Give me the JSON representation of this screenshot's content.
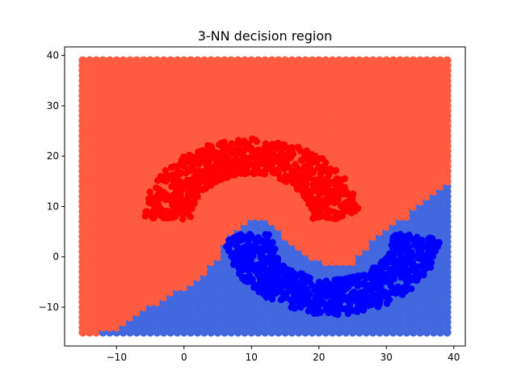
{
  "chart_data": {
    "type": "scatter",
    "title": "3-NN decision region",
    "xlabel": "",
    "ylabel": "",
    "xlim": [
      -17.7,
      41.7
    ],
    "ylim": [
      -17.7,
      41.7
    ],
    "xticks": [
      -10,
      0,
      10,
      20,
      30,
      40
    ],
    "yticks": [
      -10,
      0,
      10,
      20,
      30,
      40
    ],
    "xtick_labels": [
      "−10",
      "0",
      "10",
      "20",
      "30",
      "40"
    ],
    "ytick_labels": [
      "−10",
      "0",
      "10",
      "20",
      "30",
      "40"
    ],
    "grid": false,
    "legend": "none",
    "region_grid": {
      "x_range": [
        -15,
        39
      ],
      "y_range": [
        -15,
        39
      ],
      "step": 1
    },
    "region_colors": {
      "class_0": "#ff5b40",
      "class_1": "#4267de"
    },
    "decision_boundary": {
      "x": [
        -15,
        -13,
        -10,
        -7,
        -4,
        0,
        3,
        5,
        7,
        9,
        11,
        13,
        15,
        17,
        19,
        21,
        23,
        25,
        27,
        29,
        31,
        33,
        35,
        37,
        39
      ],
      "y": [
        -15,
        -15,
        -14,
        -11,
        -9,
        -6,
        -3,
        0,
        5,
        7,
        8,
        7,
        4,
        2,
        0,
        -1,
        -1,
        -1,
        2,
        5,
        7,
        8,
        11,
        13,
        15
      ]
    },
    "series": [
      {
        "class": "red",
        "color": "#ff0000",
        "shape": "upper-moon",
        "center": [
          10,
          7.5
        ],
        "radius": 12.5,
        "angle_range_deg": [
          0,
          180
        ],
        "band_width": 3.5,
        "points": 800
      },
      {
        "class": "blue",
        "color": "#0000ff",
        "shape": "lower-moon",
        "center": [
          22,
          4.5
        ],
        "radius": 12.5,
        "angle_range_deg": [
          180,
          360
        ],
        "band_width": 3.5,
        "points": 800
      }
    ]
  }
}
